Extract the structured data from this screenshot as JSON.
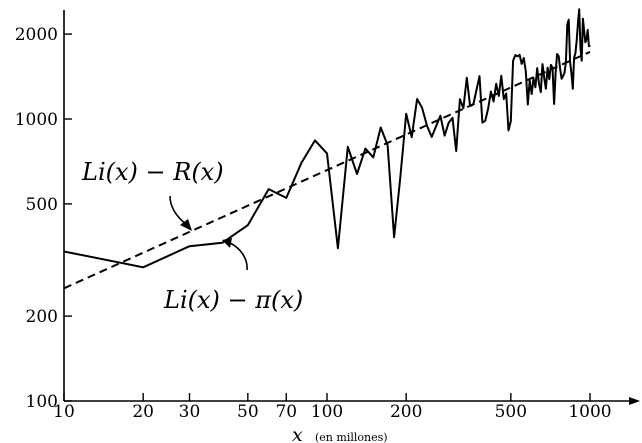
{
  "chart_data": {
    "type": "line",
    "x_scale": "log",
    "y_scale": "log",
    "xlim": [
      10,
      1000
    ],
    "ylim": [
      100,
      2500
    ],
    "x_ticks": [
      10,
      20,
      30,
      50,
      70,
      100,
      200,
      500,
      1000
    ],
    "x_tick_labels": [
      "10",
      "20",
      "30",
      "50",
      "70",
      "100",
      "200",
      "500",
      "1000"
    ],
    "y_ticks": [
      100,
      200,
      500,
      1000,
      2000
    ],
    "y_tick_labels": [
      "100",
      "200",
      "500",
      "1000",
      "2000"
    ],
    "xlabel": "x",
    "xlabel_unit": "(en millones)",
    "grid": false,
    "series": [
      {
        "name": "Li(x) − π(x)",
        "style": "solid",
        "x": [
          10,
          20,
          30,
          40,
          50,
          60,
          70,
          80,
          90,
          100,
          110,
          120,
          130,
          140,
          150,
          160,
          170,
          180,
          190,
          200,
          210,
          220,
          230,
          240,
          250,
          260,
          270,
          280,
          290,
          300,
          310,
          320,
          330,
          340,
          350,
          360,
          370,
          380,
          390,
          400,
          410,
          420,
          430,
          440,
          450,
          460,
          470,
          480,
          490,
          500,
          510,
          520,
          530,
          540,
          550,
          560,
          570,
          580,
          590,
          600,
          610,
          620,
          630,
          640,
          650,
          660,
          670,
          680,
          690,
          700,
          710,
          720,
          730,
          740,
          750,
          760,
          770,
          780,
          790,
          800,
          810,
          820,
          830,
          840,
          850,
          860,
          870,
          880,
          890,
          900,
          910,
          920,
          930,
          940,
          950,
          960,
          970,
          980,
          990,
          1000
        ],
        "y": [
          339,
          298,
          354,
          364,
          420,
          564,
          525,
          700,
          840,
          755,
          348,
          797,
          638,
          785,
          731,
          933,
          808,
          381,
          620,
          1044,
          862,
          1177,
          1095,
          946,
          863,
          944,
          1027,
          873,
          969,
          1010,
          770,
          1175,
          1092,
          1401,
          1112,
          1126,
          1263,
          1420,
          971,
          986,
          1090,
          1252,
          1154,
          1333,
          1208,
          1423,
          1176,
          1230,
          911,
          981,
          1611,
          1685,
          1669,
          1689,
          1568,
          1645,
          1475,
          1126,
          1369,
          1226,
          1398,
          1295,
          1515,
          1334,
          1246,
          1566,
          1394,
          1281,
          1521,
          1384,
          1555,
          1521,
          1131,
          1455,
          1700,
          1670,
          1510,
          1390,
          1420,
          1460,
          1590,
          2163,
          2250,
          1590,
          1460,
          1280,
          1650,
          1710,
          1900,
          2200,
          2450,
          1780,
          1610,
          2270,
          2060,
          1870,
          1910,
          2070,
          1810,
          1830
        ]
      },
      {
        "name": "Li(x) − R(x)",
        "style": "dashed",
        "x": [
          10,
          1000
        ],
        "y": [
          251,
          1730
        ]
      }
    ],
    "annotations": [
      {
        "text": "Li(x) − R(x)",
        "points_to": {
          "x": 27,
          "y": 385
        }
      },
      {
        "text": "Li(x) − π(x)",
        "points_to": {
          "x": 41,
          "y": 366
        }
      }
    ]
  }
}
